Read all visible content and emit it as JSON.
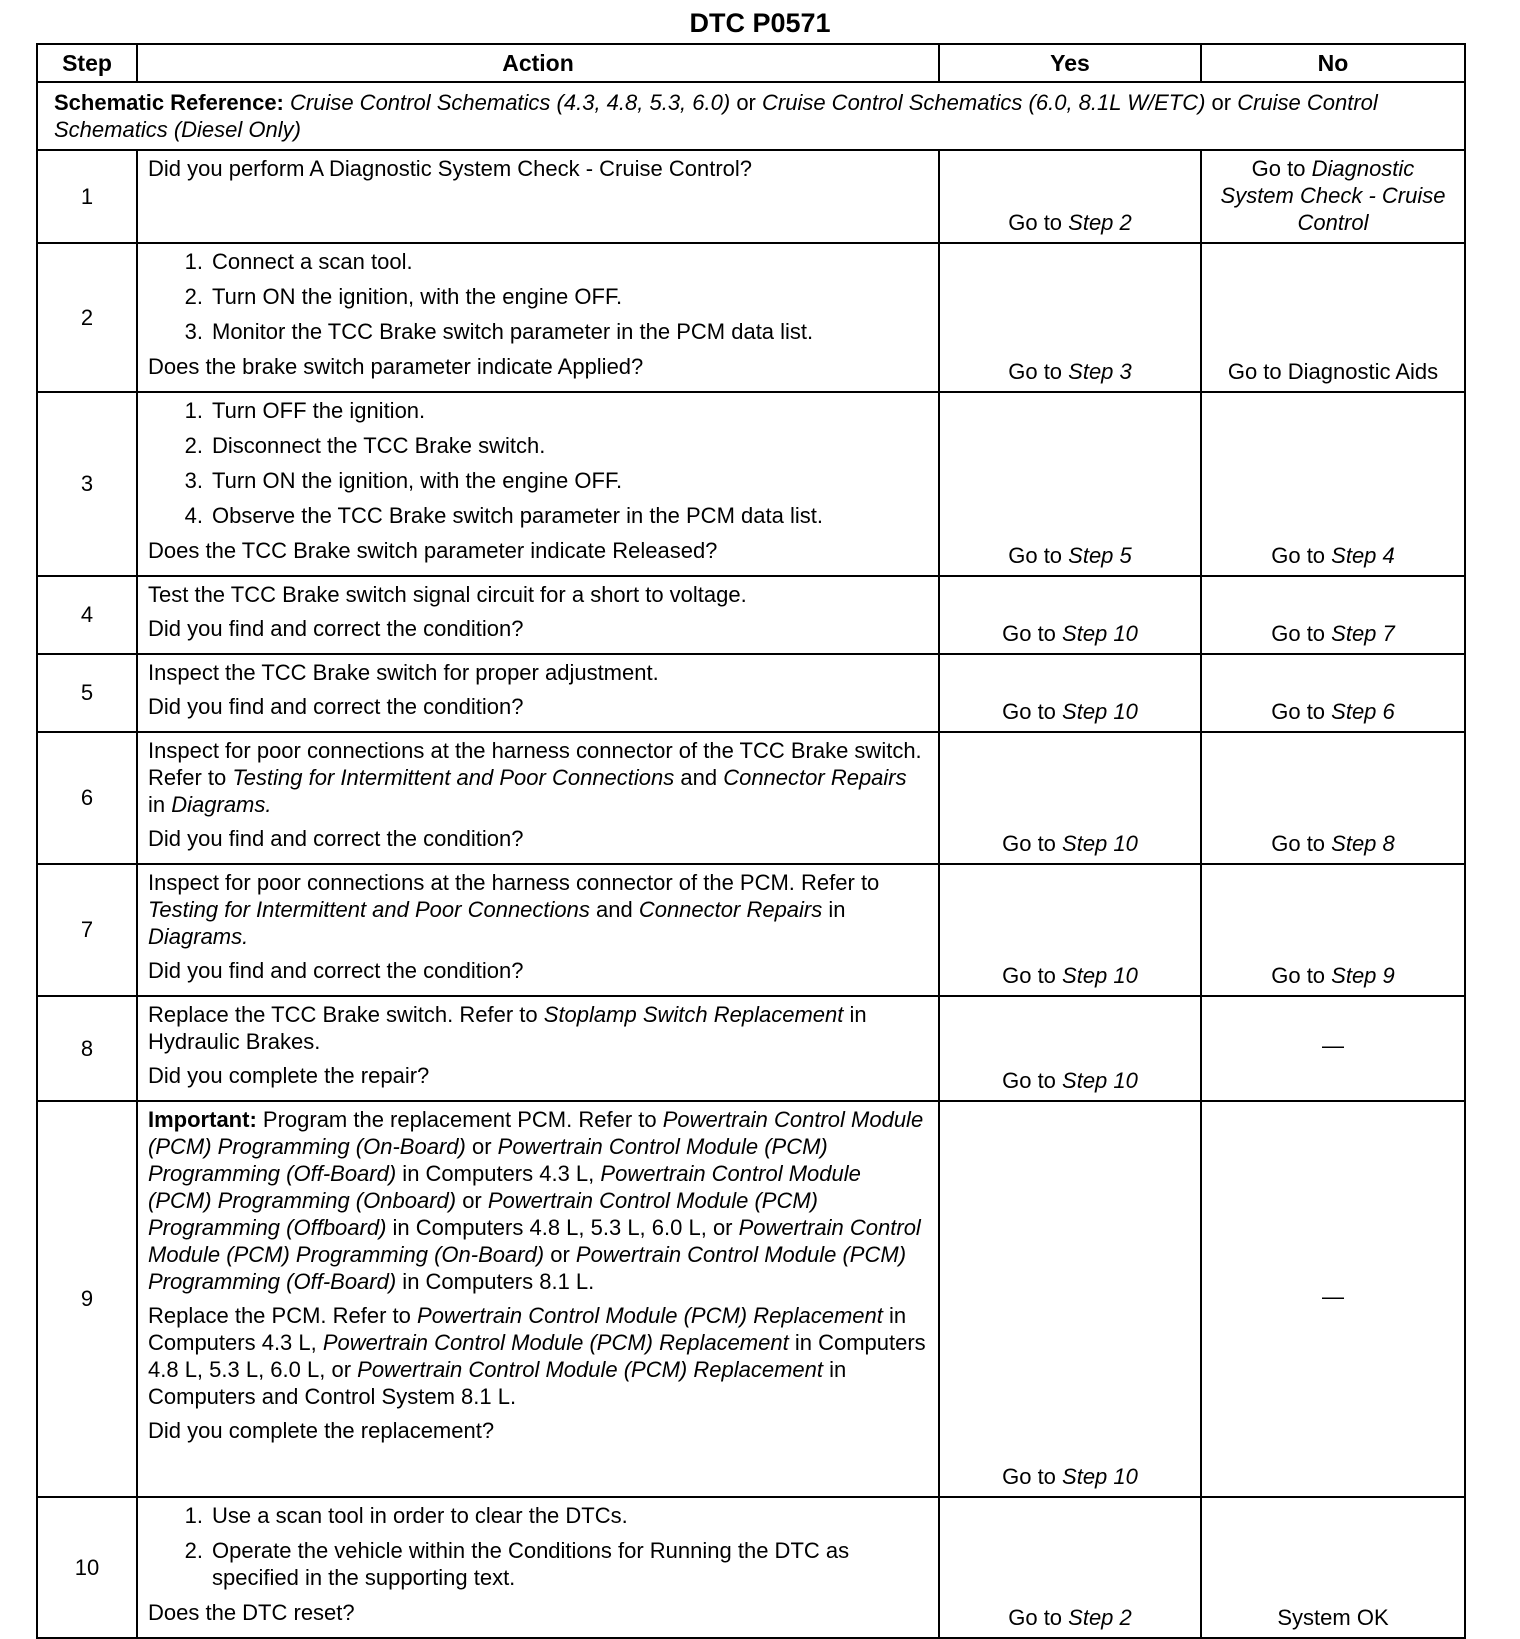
{
  "title": "DTC P0571",
  "headers": {
    "step": "Step",
    "action": "Action",
    "yes": "Yes",
    "no": "No"
  },
  "schematic": [
    [
      "Schematic Reference: ",
      "b"
    ],
    [
      "Cruise Control Schematics (4.3, 4.8, 5.3, 6.0)",
      "i"
    ],
    [
      " or ",
      ""
    ],
    [
      "Cruise Control Schematics (6.0, 8.1L W/ETC)",
      "i"
    ],
    [
      " or ",
      ""
    ],
    [
      "Cruise Control Schematics (Diesel Only)",
      "i"
    ]
  ],
  "rows": [
    {
      "step": "1",
      "action": [
        {
          "p": [
            [
              "Did you perform A Diagnostic System Check - Cruise Control?",
              ""
            ]
          ]
        }
      ],
      "yes": [
        [
          "Go to ",
          ""
        ],
        [
          "Step 2",
          "i"
        ]
      ],
      "no": [
        [
          "Go to ",
          ""
        ],
        [
          "Diagnostic System Check - Cruise Control",
          "i"
        ]
      ]
    },
    {
      "step": "2",
      "action": [
        {
          "ol": [
            [
              [
                "Connect a scan tool.",
                ""
              ]
            ],
            [
              [
                "Turn ON the ignition, with the engine OFF.",
                ""
              ]
            ],
            [
              [
                "Monitor the TCC Brake switch parameter in the PCM data list.",
                ""
              ]
            ]
          ]
        },
        {
          "p": [
            [
              "Does the brake switch parameter indicate Applied?",
              ""
            ]
          ]
        }
      ],
      "yes": [
        [
          "Go to ",
          ""
        ],
        [
          "Step 3",
          "i"
        ]
      ],
      "no": [
        [
          "Go to Diagnostic Aids",
          ""
        ]
      ]
    },
    {
      "step": "3",
      "action": [
        {
          "ol": [
            [
              [
                "Turn OFF the ignition.",
                ""
              ]
            ],
            [
              [
                "Disconnect the TCC Brake switch.",
                ""
              ]
            ],
            [
              [
                "Turn ON the ignition, with the engine OFF.",
                ""
              ]
            ],
            [
              [
                "Observe the TCC Brake switch parameter in the PCM data list.",
                ""
              ]
            ]
          ]
        },
        {
          "p": [
            [
              "Does the TCC Brake switch parameter indicate Released?",
              ""
            ]
          ]
        }
      ],
      "yes": [
        [
          "Go to ",
          ""
        ],
        [
          "Step 5",
          "i"
        ]
      ],
      "no": [
        [
          "Go to ",
          ""
        ],
        [
          "Step 4",
          "i"
        ]
      ]
    },
    {
      "step": "4",
      "action": [
        {
          "p": [
            [
              "Test the TCC Brake switch signal circuit for a short to voltage.",
              ""
            ]
          ]
        },
        {
          "p": [
            [
              "Did you find and correct the condition?",
              ""
            ]
          ]
        }
      ],
      "yes": [
        [
          "Go to ",
          ""
        ],
        [
          "Step 10",
          "i"
        ]
      ],
      "no": [
        [
          "Go to ",
          ""
        ],
        [
          "Step 7",
          "i"
        ]
      ]
    },
    {
      "step": "5",
      "action": [
        {
          "p": [
            [
              "Inspect the TCC Brake switch for proper adjustment.",
              ""
            ]
          ]
        },
        {
          "p": [
            [
              "Did you find and correct the condition?",
              ""
            ]
          ]
        }
      ],
      "yes": [
        [
          "Go to ",
          ""
        ],
        [
          "Step 10",
          "i"
        ]
      ],
      "no": [
        [
          "Go to ",
          ""
        ],
        [
          "Step 6",
          "i"
        ]
      ]
    },
    {
      "step": "6",
      "action": [
        {
          "p": [
            [
              "Inspect for poor connections at the harness connector of the TCC Brake switch. Refer to ",
              ""
            ],
            [
              "Testing for Intermittent and Poor Connections",
              "i"
            ],
            [
              " and ",
              ""
            ],
            [
              "Connector Repairs",
              "i"
            ],
            [
              " in ",
              ""
            ],
            [
              "Diagrams.",
              "i"
            ]
          ]
        },
        {
          "p": [
            [
              "Did you find and correct the condition?",
              ""
            ]
          ]
        }
      ],
      "yes": [
        [
          "Go to ",
          ""
        ],
        [
          "Step 10",
          "i"
        ]
      ],
      "no": [
        [
          "Go to ",
          ""
        ],
        [
          "Step 8",
          "i"
        ]
      ]
    },
    {
      "step": "7",
      "action": [
        {
          "p": [
            [
              "Inspect for poor connections at the harness connector of the PCM. Refer to ",
              ""
            ],
            [
              "Testing for Intermittent and Poor Connections",
              "i"
            ],
            [
              " and ",
              ""
            ],
            [
              "Connector Repairs",
              "i"
            ],
            [
              " in ",
              ""
            ],
            [
              "Diagrams.",
              "i"
            ]
          ]
        },
        {
          "p": [
            [
              "Did you find and correct the condition?",
              ""
            ]
          ]
        }
      ],
      "yes": [
        [
          "Go to ",
          ""
        ],
        [
          "Step 10",
          "i"
        ]
      ],
      "no": [
        [
          "Go to ",
          ""
        ],
        [
          "Step 9",
          "i"
        ]
      ]
    },
    {
      "step": "8",
      "action": [
        {
          "p": [
            [
              "Replace the TCC Brake switch. Refer to ",
              ""
            ],
            [
              "Stoplamp Switch Replacement",
              "i"
            ],
            [
              " in Hydraulic Brakes.",
              ""
            ]
          ]
        },
        {
          "p": [
            [
              "Did you complete the repair?",
              ""
            ]
          ]
        }
      ],
      "yes": [
        [
          "Go to ",
          ""
        ],
        [
          "Step 10",
          "i"
        ]
      ],
      "no": [
        [
          "—",
          ""
        ]
      ],
      "no_mid": true
    },
    {
      "step": "9",
      "action": [
        {
          "p": [
            [
              "Important: ",
              "b"
            ],
            [
              "Program the replacement PCM. Refer to ",
              ""
            ],
            [
              "Powertrain Control Module (PCM) Programming (On-Board)",
              "i"
            ],
            [
              " or ",
              ""
            ],
            [
              "Powertrain Control Module (PCM) Programming (Off-Board)",
              "i"
            ],
            [
              " in Computers 4.3 L, ",
              ""
            ],
            [
              "Powertrain Control Module (PCM) Programming (Onboard)",
              "i"
            ],
            [
              " or ",
              ""
            ],
            [
              "Powertrain Control Module (PCM) Programming (Offboard)",
              "i"
            ],
            [
              " in Computers 4.8 L, 5.3 L, 6.0 L, or ",
              ""
            ],
            [
              "Powertrain Control Module (PCM) Programming (On-Board)",
              "i"
            ],
            [
              " or ",
              ""
            ],
            [
              "Powertrain Control Module (PCM) Programming (Off-Board)",
              "i"
            ],
            [
              " in Computers 8.1 L.",
              ""
            ]
          ]
        },
        {
          "p": [
            [
              "Replace the PCM. Refer to ",
              ""
            ],
            [
              "Powertrain Control Module (PCM) Replacement",
              "i"
            ],
            [
              " in Computers 4.3 L, ",
              ""
            ],
            [
              "Powertrain Control Module (PCM) Replacement",
              "i"
            ],
            [
              " in Computers 4.8 L, 5.3 L, 6.0 L, or ",
              ""
            ],
            [
              "Powertrain Control Module (PCM) Replacement",
              "i"
            ],
            [
              " in Computers and Control System 8.1 L.",
              ""
            ]
          ]
        },
        {
          "p": [
            [
              "Did you complete the replacement?",
              ""
            ]
          ]
        }
      ],
      "yes": [
        [
          "Go to ",
          ""
        ],
        [
          "Step 10",
          "i"
        ]
      ],
      "no": [
        [
          "—",
          ""
        ]
      ],
      "no_mid": true
    },
    {
      "step": "10",
      "action": [
        {
          "ol": [
            [
              [
                "Use a scan tool in order to clear the DTCs.",
                ""
              ]
            ],
            [
              [
                "Operate the vehicle within the Conditions for Running the DTC as specified in the supporting text.",
                ""
              ]
            ]
          ]
        },
        {
          "p": [
            [
              "Does the DTC reset?",
              ""
            ]
          ]
        }
      ],
      "yes": [
        [
          "Go to ",
          ""
        ],
        [
          "Step 2",
          "i"
        ]
      ],
      "no": [
        [
          "System OK",
          ""
        ]
      ]
    }
  ]
}
